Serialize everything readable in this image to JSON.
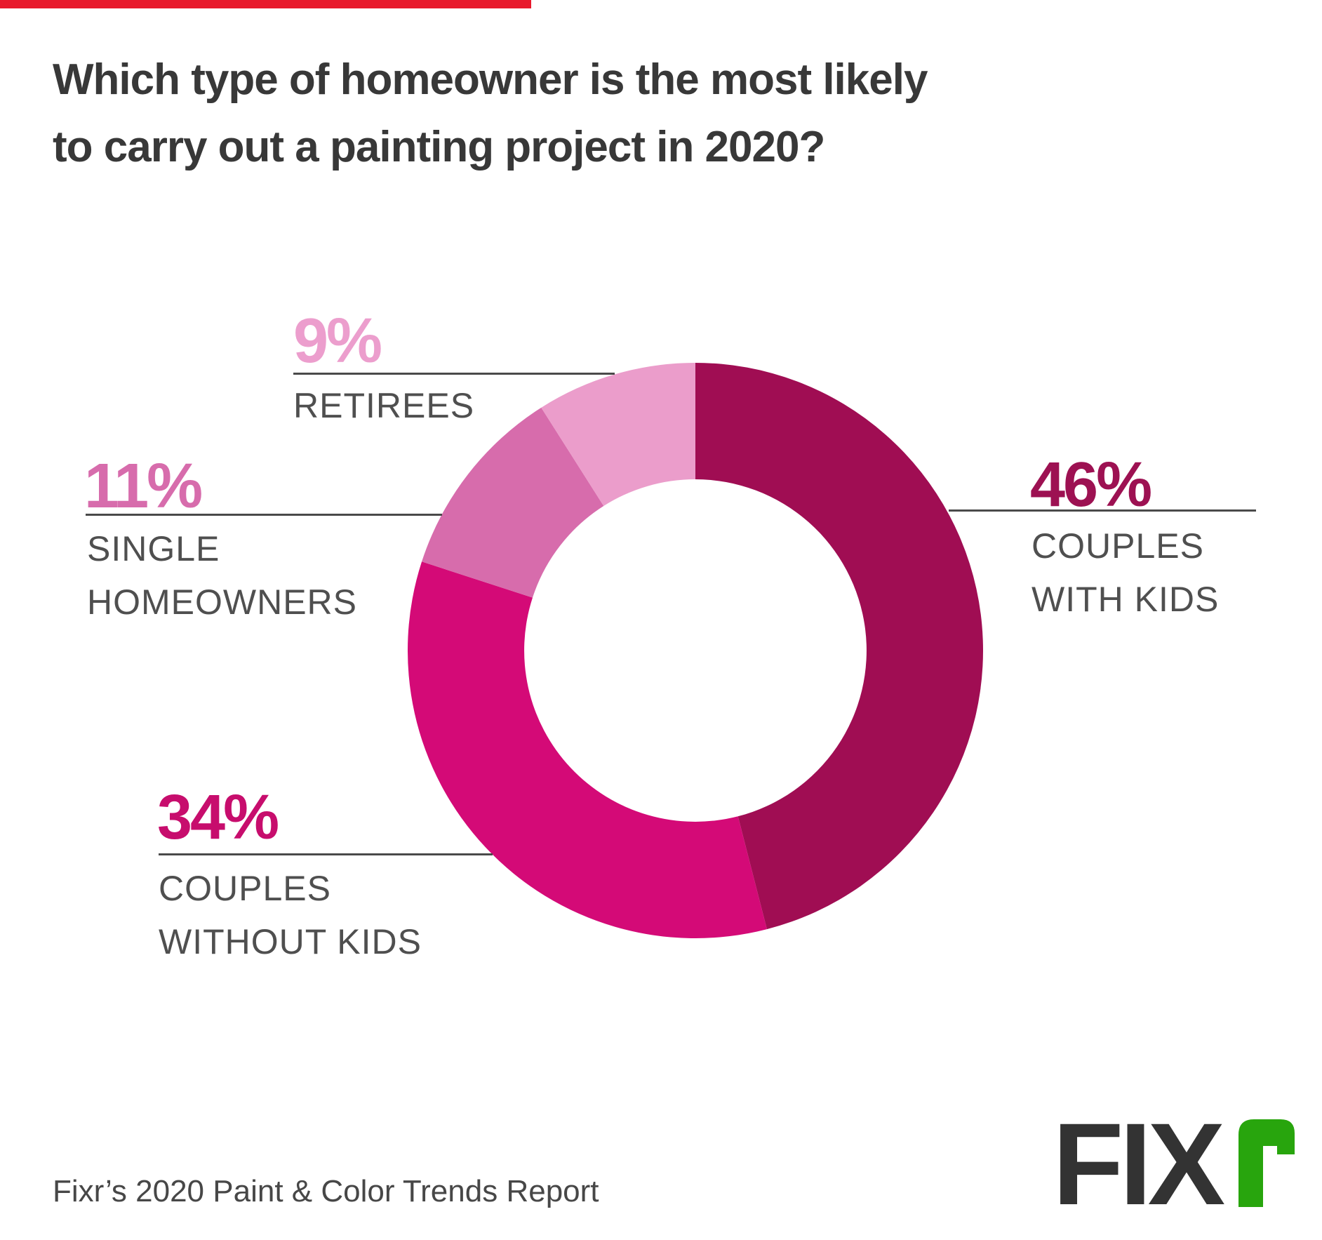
{
  "page": {
    "title_line1": "Which type of homeowner is the most likely",
    "title_line2": "to carry out a painting project in 2020?",
    "footer": "Fixr’s 2020 Paint & Color Trends Report",
    "top_bar_color": "#e8192c",
    "logo": {
      "text": "FIX",
      "accent_glyph": "r",
      "text_color": "#333333",
      "accent_color": "#28a50d"
    }
  },
  "chart_data": {
    "type": "pie",
    "variant": "donut",
    "title": "Which type of homeowner is the most likely to carry out a painting project in 2020?",
    "source": "Fixr’s 2020 Paint & Color Trends Report",
    "categories": [
      "Couples with Kids",
      "Couples without Kids",
      "Single Homeowners",
      "Retirees"
    ],
    "values": [
      46,
      34,
      11,
      9
    ],
    "unit": "%",
    "start_angle_deg": 0,
    "direction": "clockwise",
    "inner_radius_ratio": 0.595,
    "colors": [
      "#a00d53",
      "#d40a77",
      "#d76cac",
      "#eb9dcb"
    ],
    "label_colors": [
      "#9d1152",
      "#c70d6d",
      "#d76cac",
      "#ec9ecd"
    ],
    "leader_line_color": "#4a4a4a",
    "labels": [
      {
        "pct": "46%",
        "lines": [
          "COUPLES",
          "WITH KIDS"
        ]
      },
      {
        "pct": "34%",
        "lines": [
          "COUPLES",
          "WITHOUT KIDS"
        ]
      },
      {
        "pct": "11%",
        "lines": [
          "SINGLE",
          "HOMEOWNERS"
        ]
      },
      {
        "pct": "9%",
        "lines": [
          "RETIREES"
        ]
      }
    ]
  }
}
